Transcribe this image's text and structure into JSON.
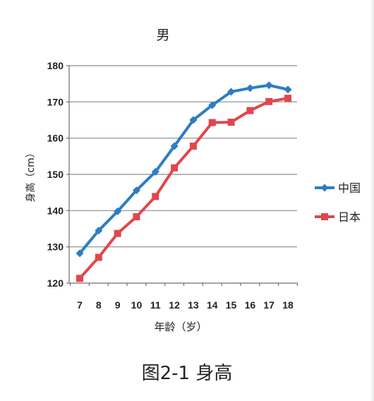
{
  "chart_data": {
    "type": "line",
    "title": "男",
    "xlabel": "年龄（岁）",
    "ylabel": "身高（cm）",
    "x": [
      7,
      8,
      9,
      10,
      11,
      12,
      13,
      14,
      15,
      16,
      17,
      18
    ],
    "ylim": [
      120,
      180
    ],
    "yticks": [
      120,
      130,
      140,
      150,
      160,
      170,
      180
    ],
    "grid": true,
    "legend_position": "right",
    "series": [
      {
        "name": "中国",
        "color": "#2D7DC1",
        "marker": "diamond",
        "values": [
          128.2,
          134.5,
          139.8,
          145.6,
          150.7,
          157.8,
          165.0,
          169.1,
          172.8,
          173.8,
          174.6,
          173.4
        ]
      },
      {
        "name": "日本",
        "color": "#E0474C",
        "marker": "square",
        "values": [
          121.3,
          127.1,
          133.7,
          138.3,
          143.9,
          151.8,
          157.8,
          164.3,
          164.4,
          167.6,
          170.1,
          171.0
        ]
      }
    ]
  },
  "caption": "图2-1  身高"
}
